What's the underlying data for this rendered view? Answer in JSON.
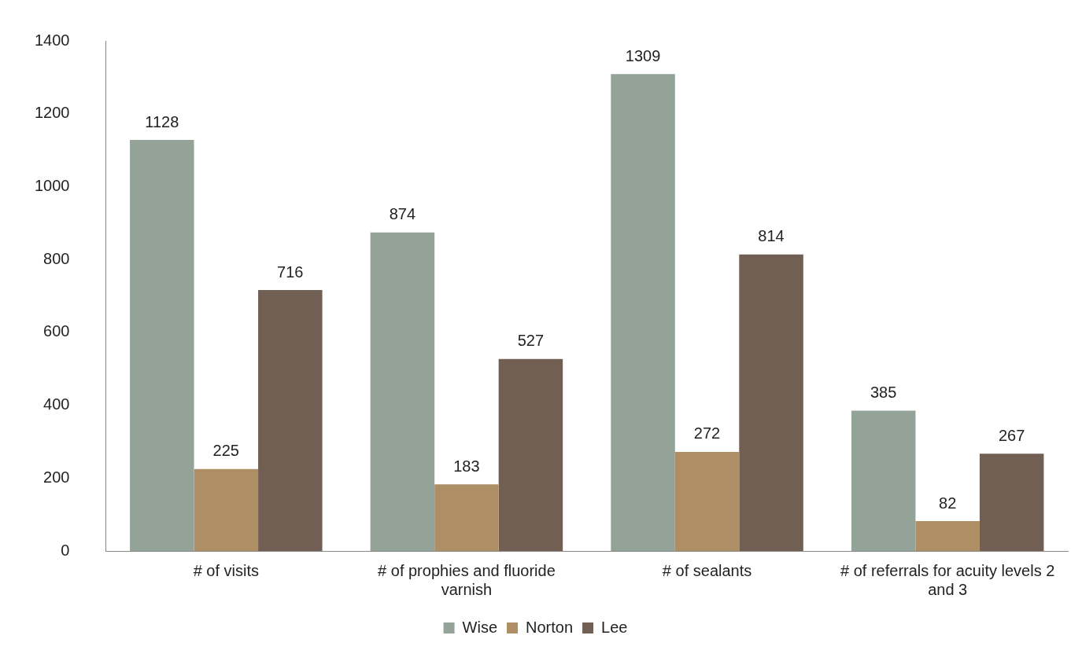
{
  "chart_data": {
    "type": "bar",
    "categories": [
      "# of visits",
      "# of prophies and fluoride varnish",
      "# of sealants",
      "# of referrals for acuity levels 2 and 3"
    ],
    "series": [
      {
        "name": "Wise",
        "color": "#94a397",
        "values": [
          1128,
          874,
          1309,
          385
        ]
      },
      {
        "name": "Norton",
        "color": "#ad8e65",
        "values": [
          225,
          183,
          272,
          82
        ]
      },
      {
        "name": "Lee",
        "color": "#725f53",
        "values": [
          716,
          527,
          814,
          267
        ]
      }
    ],
    "ylim": [
      0,
      1400
    ],
    "yticks": [
      0,
      200,
      400,
      600,
      800,
      1000,
      1200,
      1400
    ],
    "data_labels": true,
    "grid": false,
    "legend": "bottom"
  }
}
